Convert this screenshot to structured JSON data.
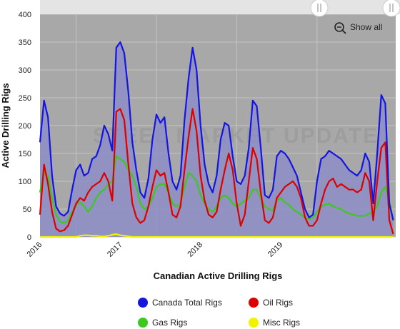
{
  "colors": {
    "plot_bg": "#a8a8a8",
    "top_bar": "#e4e4e4",
    "grid": "#c4c4c4",
    "total": "#1515e0",
    "oil": "#dd0000",
    "gas": "#3cc81e",
    "misc": "#f2f200",
    "area_fill": "#8c8cc8"
  },
  "show_all": {
    "label": "Show all",
    "icon": "zoom-out-icon"
  },
  "watermark": {
    "text": "STEEL MARKET UPDATE"
  },
  "chart_data": {
    "type": "line",
    "title": "",
    "xlabel": "Canadian Active Drilling Rigs",
    "ylabel": "Active Drilling Rigs",
    "ylim": [
      0,
      400
    ],
    "yticks": [
      0,
      50,
      100,
      150,
      200,
      250,
      300,
      350,
      400
    ],
    "xlim": [
      2015.55,
      2019.98
    ],
    "xticks": [
      {
        "label": "2016",
        "value": 2016.0
      },
      {
        "label": "2017",
        "value": 2017.0
      },
      {
        "label": "2018",
        "value": 2018.0
      },
      {
        "label": "2019",
        "value": 2019.0
      }
    ],
    "grid": true,
    "legend_position": "bottom",
    "x": [
      2015.55,
      2015.6,
      2015.65,
      2015.7,
      2015.75,
      2015.8,
      2015.85,
      2015.9,
      2015.95,
      2016.0,
      2016.05,
      2016.1,
      2016.15,
      2016.2,
      2016.25,
      2016.3,
      2016.35,
      2016.4,
      2016.45,
      2016.5,
      2016.55,
      2016.6,
      2016.65,
      2016.7,
      2016.75,
      2016.8,
      2016.85,
      2016.9,
      2016.95,
      2017.0,
      2017.05,
      2017.1,
      2017.15,
      2017.2,
      2017.25,
      2017.3,
      2017.35,
      2017.4,
      2017.45,
      2017.5,
      2017.55,
      2017.6,
      2017.65,
      2017.7,
      2017.75,
      2017.8,
      2017.85,
      2017.9,
      2017.95,
      2018.0,
      2018.05,
      2018.1,
      2018.15,
      2018.2,
      2018.25,
      2018.3,
      2018.35,
      2018.4,
      2018.45,
      2018.5,
      2018.55,
      2018.6,
      2018.65,
      2018.7,
      2018.75,
      2018.8,
      2018.85,
      2018.9,
      2018.95,
      2019.0,
      2019.05,
      2019.1,
      2019.15,
      2019.2,
      2019.25,
      2019.3,
      2019.35,
      2019.4,
      2019.45,
      2019.5,
      2019.55,
      2019.6,
      2019.65,
      2019.7,
      2019.75,
      2019.8,
      2019.85,
      2019.9,
      2019.95
    ],
    "series": [
      {
        "name": "Canada Total Rigs",
        "color": "#1515e0",
        "values": [
          170,
          245,
          215,
          110,
          55,
          42,
          38,
          45,
          85,
          120,
          130,
          110,
          115,
          140,
          145,
          165,
          200,
          185,
          155,
          340,
          350,
          330,
          260,
          170,
          120,
          80,
          70,
          105,
          175,
          220,
          205,
          215,
          150,
          100,
          85,
          110,
          210,
          285,
          340,
          300,
          200,
          130,
          95,
          80,
          110,
          175,
          205,
          200,
          145,
          100,
          95,
          110,
          160,
          245,
          235,
          160,
          75,
          70,
          85,
          145,
          155,
          150,
          140,
          125,
          110,
          80,
          50,
          35,
          40,
          100,
          140,
          145,
          155,
          150,
          145,
          140,
          130,
          120,
          115,
          110,
          120,
          150,
          135,
          60,
          150,
          255,
          240,
          60,
          30
        ]
      },
      {
        "name": "Oil Rigs",
        "color": "#dd0000",
        "values": [
          40,
          130,
          95,
          45,
          15,
          10,
          12,
          20,
          40,
          60,
          70,
          65,
          80,
          90,
          95,
          100,
          115,
          100,
          65,
          225,
          230,
          210,
          130,
          60,
          35,
          25,
          30,
          55,
          90,
          120,
          110,
          115,
          80,
          40,
          35,
          55,
          120,
          180,
          230,
          190,
          110,
          65,
          40,
          35,
          45,
          85,
          120,
          150,
          120,
          60,
          20,
          40,
          100,
          160,
          140,
          80,
          30,
          25,
          35,
          70,
          80,
          90,
          95,
          100,
          90,
          70,
          35,
          20,
          20,
          30,
          60,
          85,
          100,
          105,
          90,
          95,
          90,
          85,
          85,
          80,
          85,
          115,
          100,
          30,
          100,
          160,
          170,
          30,
          5
        ]
      },
      {
        "name": "Gas Rigs",
        "color": "#3cc81e",
        "values": [
          80,
          115,
          110,
          70,
          40,
          28,
          25,
          30,
          45,
          58,
          62,
          55,
          45,
          55,
          70,
          80,
          85,
          95,
          100,
          145,
          140,
          135,
          120,
          110,
          90,
          60,
          50,
          55,
          70,
          90,
          95,
          95,
          80,
          60,
          55,
          60,
          90,
          115,
          110,
          100,
          75,
          60,
          50,
          45,
          55,
          70,
          75,
          70,
          60,
          55,
          60,
          65,
          70,
          85,
          85,
          70,
          55,
          50,
          48,
          65,
          70,
          62,
          58,
          50,
          45,
          40,
          35,
          32,
          35,
          45,
          55,
          58,
          60,
          55,
          52,
          50,
          45,
          42,
          40,
          38,
          38,
          38,
          42,
          45,
          55,
          80,
          90,
          65,
          30
        ]
      },
      {
        "name": "Misc Rigs",
        "color": "#f2f200",
        "values": [
          0,
          0,
          0,
          0,
          0,
          0,
          0,
          0,
          0,
          0,
          2,
          3,
          3,
          2,
          2,
          1,
          1,
          2,
          4,
          5,
          3,
          2,
          1,
          0,
          0,
          0,
          0,
          0,
          0,
          0,
          0,
          0,
          0,
          0,
          0,
          0,
          0,
          0,
          0,
          0,
          0,
          0,
          0,
          0,
          0,
          0,
          0,
          0,
          0,
          0,
          0,
          0,
          0,
          0,
          0,
          0,
          0,
          0,
          0,
          0,
          0,
          0,
          0,
          0,
          0,
          0,
          0,
          0,
          0,
          0,
          0,
          0,
          0,
          0,
          0,
          0,
          0,
          0,
          0,
          0,
          0,
          0,
          0,
          0,
          0,
          0,
          0,
          0,
          0
        ]
      }
    ]
  }
}
